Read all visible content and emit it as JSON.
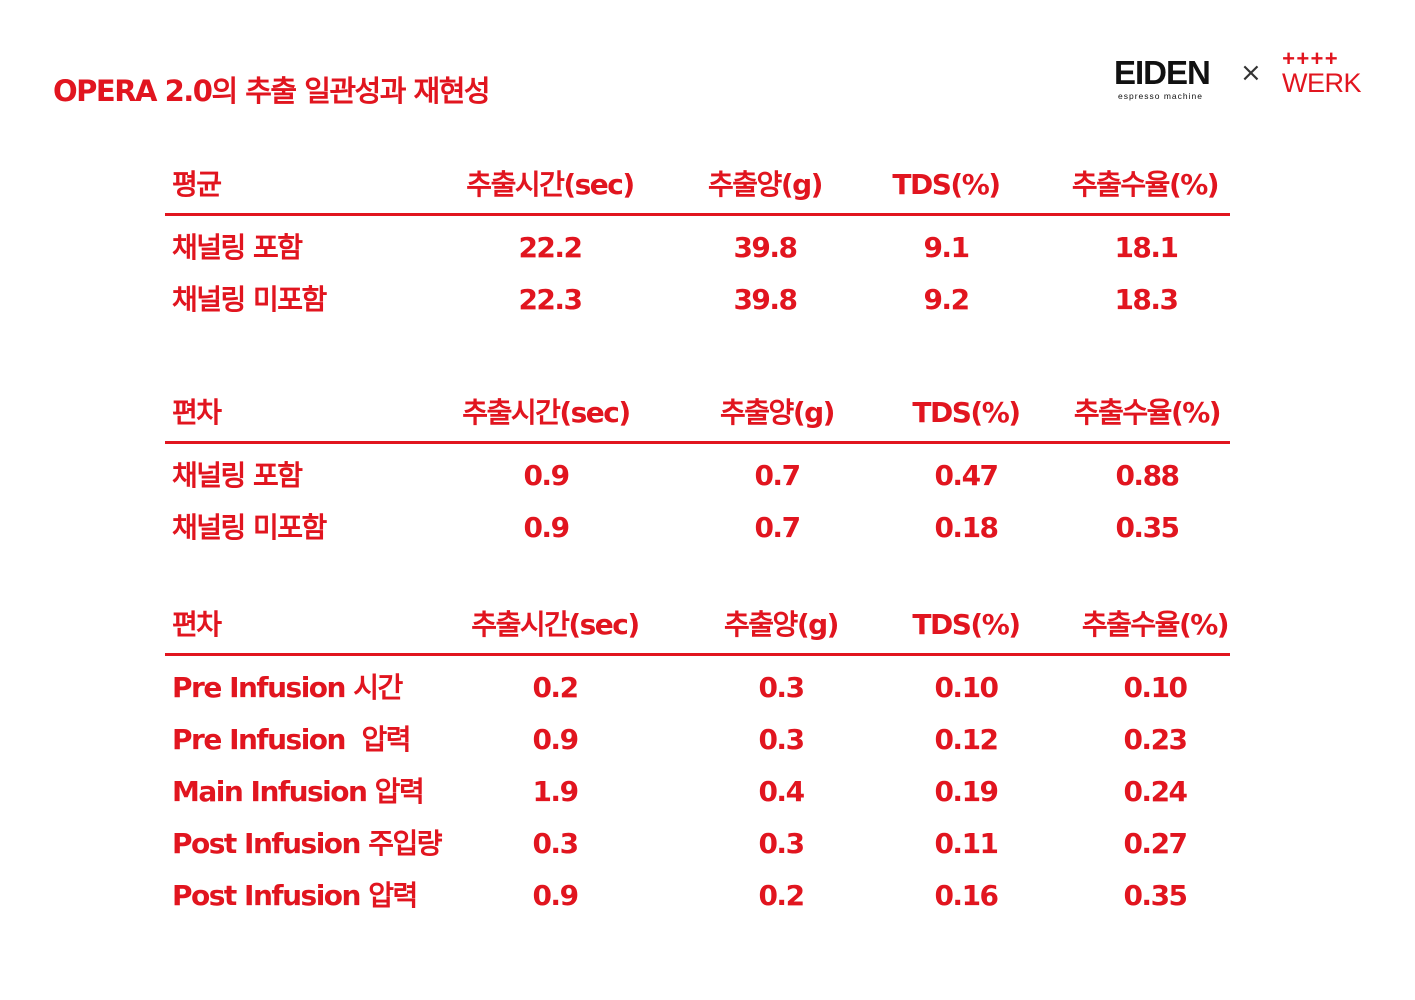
{
  "title": "OPERA 2.0의 추출 일관성과 재현성",
  "logo": {
    "brand_left": "EIDEN",
    "brand_left_sub": "espresso machine",
    "separator": "×",
    "brand_right_mark": "++++",
    "brand_right": "WERK"
  },
  "colors": {
    "accent": "#e1151f",
    "logo_text": "#111111"
  },
  "tables": [
    {
      "label": "평균",
      "columns": [
        "추출시간(sec)",
        "추출양(g)",
        "TDS(%)",
        "추출수율(%)"
      ],
      "rows": [
        {
          "label": "채널링 포함",
          "values": [
            "22.2",
            "39.8",
            "9.1",
            "18.1"
          ]
        },
        {
          "label": "채널링 미포함",
          "values": [
            "22.3",
            "39.8",
            "9.2",
            "18.3"
          ]
        }
      ]
    },
    {
      "label": "편차",
      "columns": [
        "추출시간(sec)",
        "추출양(g)",
        "TDS(%)",
        "추출수율(%)"
      ],
      "rows": [
        {
          "label": "채널링 포함",
          "values": [
            "0.9",
            "0.7",
            "0.47",
            "0.88"
          ]
        },
        {
          "label": "채널링 미포함",
          "values": [
            "0.9",
            "0.7",
            "0.18",
            "0.35"
          ]
        }
      ]
    },
    {
      "label": "편차",
      "columns": [
        "추출시간(sec)",
        "추출양(g)",
        "TDS(%)",
        "추출수율(%)"
      ],
      "rows": [
        {
          "label": "Pre Infusion 시간",
          "values": [
            "0.2",
            "0.3",
            "0.10",
            "0.10"
          ]
        },
        {
          "label": "Pre Infusion  압력",
          "values": [
            "0.9",
            "0.3",
            "0.12",
            "0.23"
          ]
        },
        {
          "label": "Main Infusion 압력",
          "values": [
            "1.9",
            "0.4",
            "0.19",
            "0.24"
          ]
        },
        {
          "label": "Post Infusion 주입량",
          "values": [
            "0.3",
            "0.3",
            "0.11",
            "0.27"
          ]
        },
        {
          "label": "Post Infusion 압력",
          "values": [
            "0.9",
            "0.2",
            "0.16",
            "0.35"
          ]
        }
      ]
    }
  ]
}
